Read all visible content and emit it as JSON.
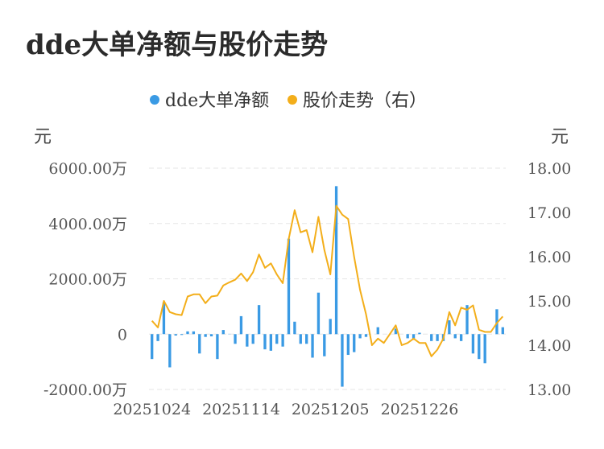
{
  "title": "dde大单净额与股价走势",
  "colors": {
    "bar": "#3a9ae4",
    "line": "#f3ae1a",
    "grid": "#e6e6e6"
  },
  "chart_data": {
    "type": "bar+line",
    "title": "dde大单净额与股价走势",
    "legend": {
      "placement": "top-center",
      "entries": [
        "dde大单净额",
        "股价走势（右）"
      ]
    },
    "left_axis": {
      "unit": "元",
      "ylim": [
        -2000,
        6000
      ],
      "ticks": [
        -2000,
        0,
        2000,
        4000,
        6000
      ],
      "tick_labels": [
        "-2000.00万",
        "0",
        "2000.00万",
        "4000.00万",
        "6000.00万"
      ]
    },
    "right_axis": {
      "unit": "元",
      "ylim": [
        13,
        18
      ],
      "ticks": [
        13,
        14,
        15,
        16,
        17,
        18
      ],
      "tick_labels": [
        "13.00",
        "14.00",
        "15.00",
        "16.00",
        "17.00",
        "18.00"
      ]
    },
    "x_tick_labels": [
      {
        "index": 0,
        "label": "20251024"
      },
      {
        "index": 15,
        "label": "20251114"
      },
      {
        "index": 30,
        "label": "20251205"
      },
      {
        "index": 45,
        "label": "20251226"
      }
    ],
    "grid": true,
    "series": [
      {
        "name": "dde大单净额",
        "type": "bar",
        "axis": "left",
        "values": [
          -900,
          -250,
          1150,
          -1200,
          -50,
          -30,
          100,
          100,
          -700,
          -100,
          -80,
          -900,
          150,
          10,
          -350,
          650,
          -450,
          -350,
          1050,
          -550,
          -600,
          -350,
          -450,
          3450,
          450,
          -350,
          -350,
          -850,
          1500,
          -800,
          550,
          5350,
          -1900,
          -750,
          -650,
          -150,
          -100,
          0,
          250,
          0,
          0,
          200,
          0,
          -150,
          -200,
          50,
          0,
          -250,
          -250,
          -250,
          500,
          -150,
          -250,
          1050,
          -700,
          -900,
          -1050,
          0,
          900,
          250
        ]
      },
      {
        "name": "股价走势（右）",
        "type": "line",
        "axis": "right",
        "values": [
          14.55,
          14.4,
          15.0,
          14.75,
          14.7,
          14.68,
          15.1,
          15.15,
          15.15,
          14.95,
          15.1,
          15.12,
          15.35,
          15.42,
          15.48,
          15.62,
          15.45,
          15.65,
          16.05,
          15.75,
          15.85,
          15.6,
          15.4,
          16.4,
          17.05,
          16.55,
          16.6,
          16.1,
          16.9,
          16.15,
          15.6,
          17.15,
          16.95,
          16.85,
          16.0,
          15.25,
          14.7,
          14.0,
          14.15,
          14.05,
          14.25,
          14.45,
          14.0,
          14.05,
          14.15,
          14.05,
          14.05,
          13.75,
          13.9,
          14.15,
          14.75,
          14.45,
          14.85,
          14.8,
          14.9,
          14.35,
          14.3,
          14.3,
          14.5,
          14.65
        ]
      }
    ]
  }
}
